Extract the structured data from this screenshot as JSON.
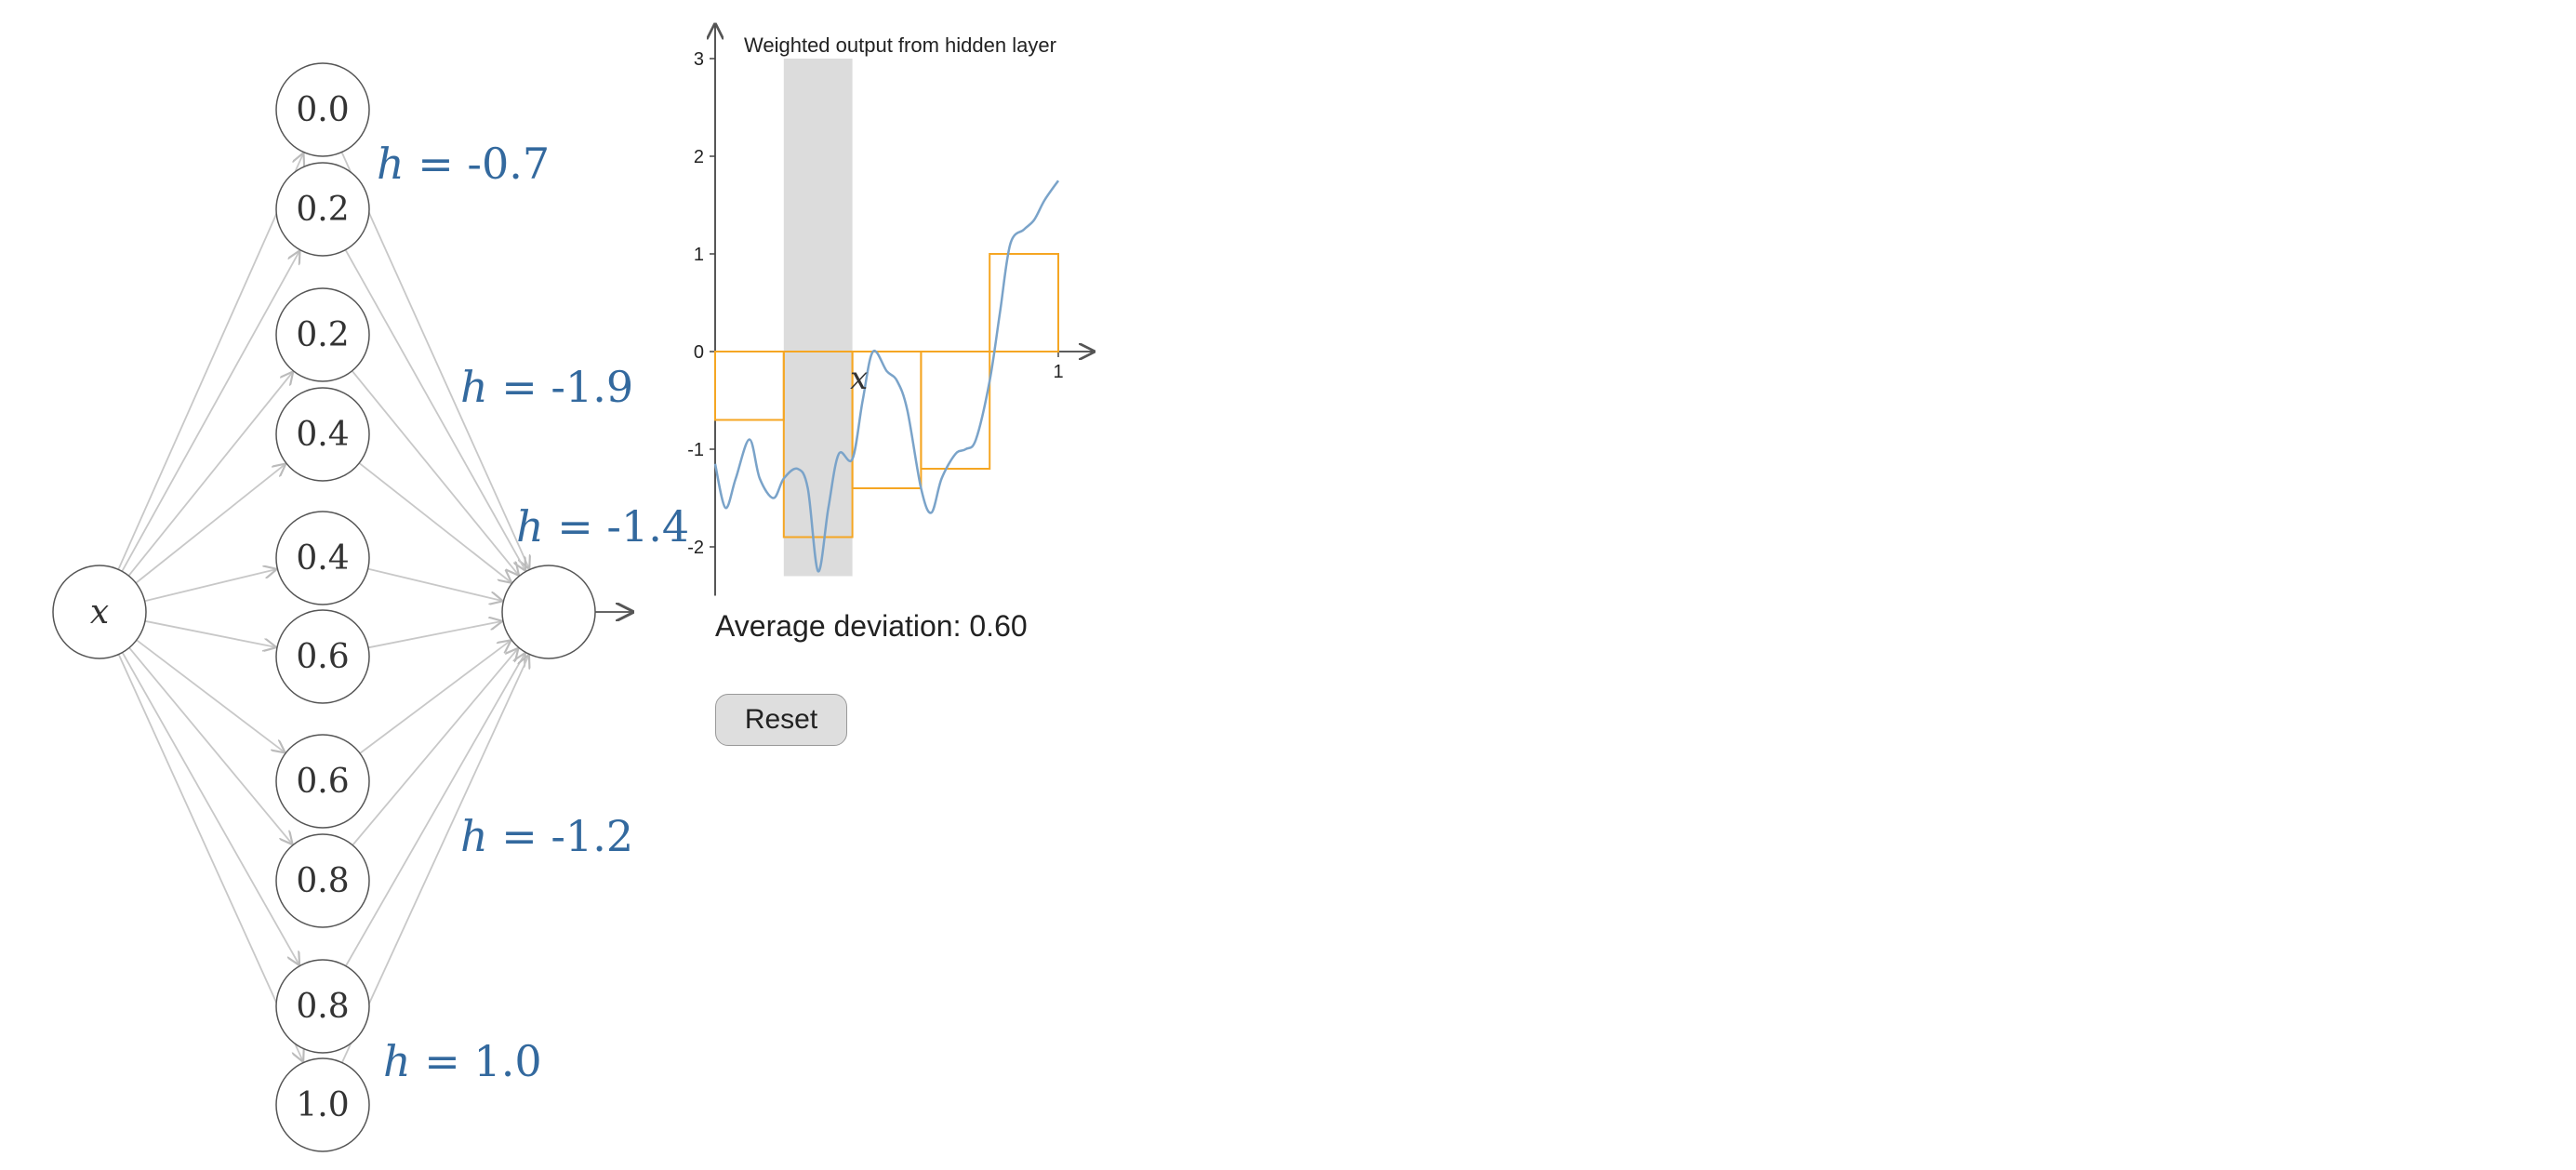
{
  "network": {
    "input_label": "x",
    "hidden_nodes": [
      "0.0",
      "0.2",
      "0.2",
      "0.4",
      "0.4",
      "0.6",
      "0.6",
      "0.8",
      "0.8",
      "1.0"
    ],
    "h_var": "h",
    "h_values": [
      "-0.7",
      "-1.9",
      "-1.4",
      "-1.2",
      "1.0"
    ]
  },
  "chart_data": {
    "type": "line",
    "title": "Weighted output from hidden layer",
    "xlabel": "x",
    "x_tick_labels": [
      "1"
    ],
    "y_tick_labels": [
      "3",
      "2",
      "1",
      "0",
      "-1",
      "-2"
    ],
    "xlim": [
      0,
      1
    ],
    "ylim": [
      -2.5,
      3.2
    ],
    "highlight_band": [
      0.2,
      0.4
    ],
    "step_function": {
      "color": "#f5a623",
      "breaks": [
        0,
        0.2,
        0.4,
        0.6,
        0.8,
        1.0
      ],
      "values": [
        -0.7,
        -1.9,
        -1.4,
        -1.2,
        1.0
      ]
    },
    "target_curve": {
      "color": "#7aa3c9",
      "x": [
        0,
        0.03,
        0.06,
        0.1,
        0.13,
        0.17,
        0.2,
        0.24,
        0.27,
        0.3,
        0.33,
        0.36,
        0.4,
        0.43,
        0.46,
        0.5,
        0.53,
        0.56,
        0.6,
        0.63,
        0.66,
        0.7,
        0.73,
        0.76,
        0.8,
        0.83,
        0.86,
        0.9,
        0.93,
        0.96,
        1.0
      ],
      "y": [
        -1.15,
        -1.6,
        -1.3,
        -0.9,
        -1.3,
        -1.5,
        -1.3,
        -1.2,
        -1.4,
        -2.25,
        -1.6,
        -1.05,
        -1.1,
        -0.5,
        0.0,
        -0.2,
        -0.3,
        -0.6,
        -1.4,
        -1.65,
        -1.3,
        -1.05,
        -1.0,
        -0.9,
        -0.3,
        0.4,
        1.1,
        1.25,
        1.35,
        1.55,
        1.75
      ]
    }
  },
  "avg_deviation": "Average deviation: 0.60",
  "reset_label": "Reset",
  "colors": {
    "h_label": "#33699e",
    "band": "#dcdcdc",
    "edge": "#c8c8c8"
  }
}
